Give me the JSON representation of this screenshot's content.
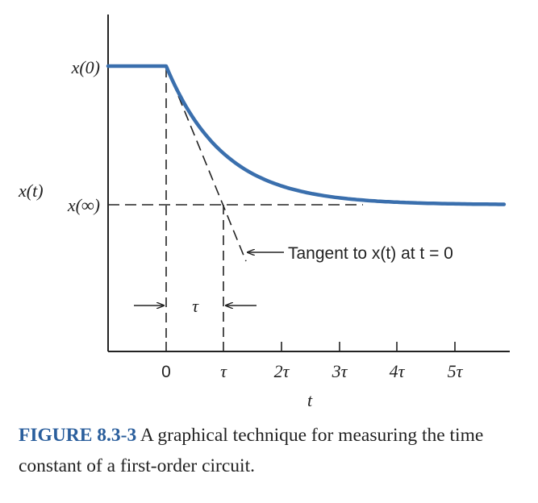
{
  "diagram": {
    "y_labels": {
      "x0": "x(0)",
      "xinf": "x(∞)",
      "xt": "x(t)"
    },
    "x_ticks": [
      "0",
      "τ",
      "2τ",
      "3τ",
      "4τ",
      "5τ"
    ],
    "x_axis_label": "t",
    "tau_marker": "τ",
    "tangent_annotation": "Tangent to x(t) at t = 0",
    "colors": {
      "curve": "#3a6fad",
      "ink": "#222222",
      "caption_accent": "#2a5e9c"
    }
  },
  "caption": {
    "number": "FIGURE 8.3-3",
    "text": "A graphical technique for measuring the time constant of a first-order circuit."
  }
}
